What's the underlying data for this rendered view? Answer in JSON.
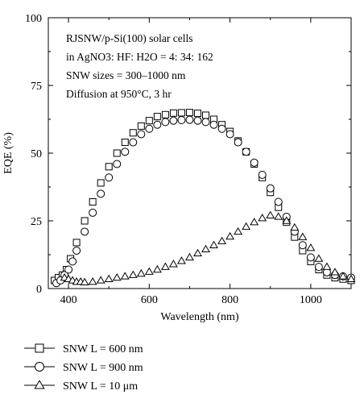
{
  "chart_data": {
    "type": "scatter",
    "title": "",
    "xlabel": "Wavelength (nm)",
    "ylabel": "EQE (%)",
    "xlim": [
      350,
      1100
    ],
    "ylim": [
      0,
      100
    ],
    "xticks": [
      "400",
      "600",
      "800",
      "1000"
    ],
    "yticks": [
      "0",
      "25",
      "50",
      "75",
      "100"
    ],
    "grid": false,
    "annotations": [
      "RJSNW/p-Si(100) solar cells",
      "in AgNO3: HF: H2O = 4: 34: 162",
      "SNW sizes = 300–1000 nm",
      "Diffusion at 950°C, 3 hr"
    ],
    "legend_position": "below-left",
    "series": [
      {
        "name": "SNW L = 600 nm",
        "marker": "square",
        "x": [
          365,
          375,
          385,
          395,
          405,
          420,
          440,
          460,
          480,
          500,
          520,
          540,
          560,
          580,
          600,
          620,
          640,
          660,
          680,
          700,
          720,
          740,
          760,
          780,
          800,
          820,
          840,
          860,
          880,
          900,
          920,
          940,
          960,
          980,
          1000,
          1020,
          1040,
          1060,
          1080,
          1100
        ],
        "y": [
          3,
          4,
          5,
          7,
          11,
          17,
          25,
          32,
          39,
          45,
          50,
          54,
          57.5,
          60,
          62,
          63.5,
          64.2,
          64.8,
          64.9,
          65,
          64.7,
          64,
          62.5,
          60.5,
          58,
          54.5,
          50.5,
          46,
          41,
          35.5,
          30,
          24.5,
          19,
          14,
          10,
          7,
          5,
          4,
          3.5,
          3
        ]
      },
      {
        "name": "SNW L = 900 nm",
        "marker": "circle",
        "x": [
          370,
          380,
          390,
          400,
          410,
          420,
          440,
          460,
          480,
          500,
          520,
          540,
          560,
          580,
          600,
          620,
          640,
          660,
          680,
          700,
          720,
          740,
          760,
          780,
          800,
          820,
          840,
          860,
          880,
          900,
          920,
          940,
          960,
          980,
          1000,
          1020,
          1040,
          1060,
          1080,
          1100
        ],
        "y": [
          2,
          3,
          5,
          7,
          10,
          14,
          21,
          28,
          35,
          41,
          46,
          50.5,
          54,
          57,
          59,
          60.5,
          61.5,
          62,
          62.2,
          62.3,
          62,
          61.5,
          60.5,
          59,
          57,
          54,
          50.5,
          46.5,
          42,
          37,
          32,
          26.5,
          21,
          16,
          11.5,
          8,
          6,
          5,
          4.5,
          4
        ]
      },
      {
        "name": "SNW L = 10 μm",
        "marker": "triangle",
        "x": [
          390,
          400,
          410,
          420,
          430,
          440,
          460,
          480,
          500,
          520,
          540,
          560,
          580,
          600,
          620,
          640,
          660,
          680,
          700,
          720,
          740,
          760,
          780,
          800,
          820,
          840,
          860,
          880,
          900,
          920,
          940,
          960,
          980,
          1000,
          1020,
          1040,
          1060,
          1080,
          1100
        ],
        "y": [
          4,
          3.5,
          3,
          2.5,
          2.5,
          2.3,
          2.5,
          3,
          3.5,
          4,
          4.5,
          5,
          5.5,
          6.2,
          7,
          8,
          9,
          10.2,
          11.5,
          13,
          14.5,
          16,
          17.5,
          19.2,
          21,
          22.8,
          24.5,
          26,
          27,
          26.5,
          25,
          22.5,
          19,
          15,
          11,
          8,
          6,
          4.5,
          3.5
        ]
      }
    ]
  }
}
